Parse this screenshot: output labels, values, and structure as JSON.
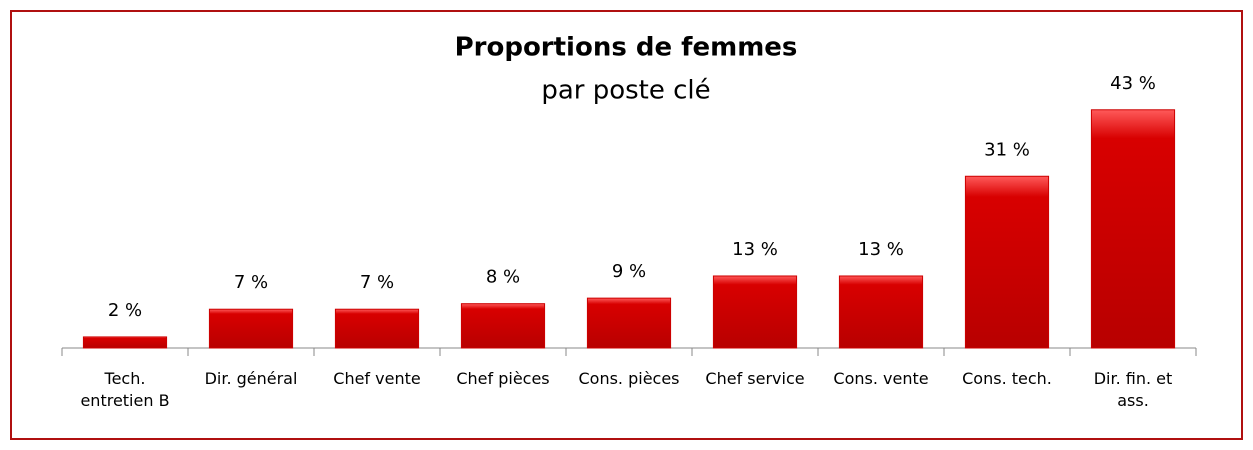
{
  "chart_data": {
    "type": "bar",
    "title": "Proportions de femmes",
    "subtitle": "par poste clé",
    "categories": [
      "Tech. entretien B",
      "Dir. général",
      "Chef vente",
      "Chef pièces",
      "Cons. pièces",
      "Chef service",
      "Cons. vente",
      "Cons. tech.",
      "Dir. fin. et ass."
    ],
    "values": [
      2,
      7,
      7,
      8,
      9,
      13,
      13,
      31,
      43
    ],
    "value_labels": [
      "2 %",
      "7 %",
      "7 %",
      "8 %",
      "9 %",
      "13 %",
      "13 %",
      "31 %",
      "43 %"
    ],
    "color": "#cc0000",
    "ylim": [
      0,
      50
    ]
  }
}
